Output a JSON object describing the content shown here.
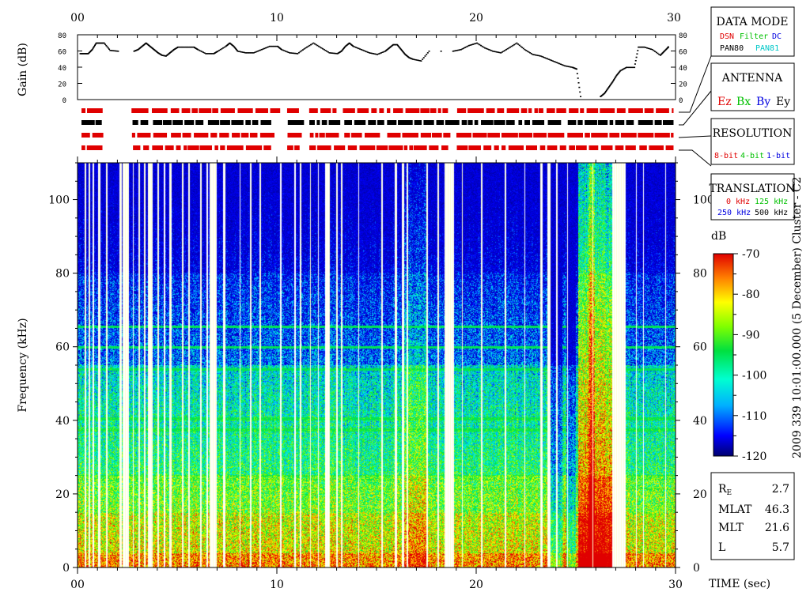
{
  "chart_data": {
    "type": "heatmap",
    "time_axis": {
      "label": "TIME (sec)",
      "range": [
        0,
        30
      ],
      "ticks": [
        "00",
        "10",
        "20",
        "30"
      ]
    },
    "gain_panel": {
      "ylabel": "Gain (dB)",
      "yrange": [
        0,
        80
      ],
      "ticks": [
        0,
        20,
        40,
        60,
        80
      ],
      "samples": [
        [
          0.1,
          57
        ],
        [
          0.3,
          57
        ],
        [
          0.5,
          57
        ],
        [
          0.7,
          62
        ],
        [
          0.9,
          70
        ],
        [
          1.1,
          70
        ],
        [
          1.3,
          70
        ],
        [
          1.6,
          61
        ],
        [
          2.0,
          60
        ],
        [
          2.8,
          60
        ],
        [
          3.0,
          62
        ],
        [
          3.2,
          66
        ],
        [
          3.4,
          70
        ],
        [
          3.6,
          66
        ],
        [
          3.8,
          62
        ],
        [
          4.0,
          58
        ],
        [
          4.2,
          55
        ],
        [
          4.4,
          54
        ],
        [
          4.6,
          58
        ],
        [
          4.8,
          62
        ],
        [
          5.0,
          65
        ],
        [
          5.4,
          65
        ],
        [
          5.8,
          65
        ],
        [
          6.0,
          62
        ],
        [
          6.4,
          57
        ],
        [
          6.8,
          57
        ],
        [
          7.0,
          60
        ],
        [
          7.4,
          66
        ],
        [
          7.6,
          70
        ],
        [
          7.8,
          66
        ],
        [
          8.0,
          60
        ],
        [
          8.4,
          58
        ],
        [
          8.8,
          58
        ],
        [
          9.2,
          62
        ],
        [
          9.6,
          66
        ],
        [
          10.0,
          66
        ],
        [
          10.2,
          62
        ],
        [
          10.6,
          58
        ],
        [
          11.0,
          57
        ],
        [
          11.4,
          64
        ],
        [
          11.8,
          70
        ],
        [
          12.2,
          64
        ],
        [
          12.6,
          58
        ],
        [
          13.0,
          57
        ],
        [
          13.2,
          60
        ],
        [
          13.4,
          66
        ],
        [
          13.6,
          70
        ],
        [
          13.8,
          66
        ],
        [
          14.2,
          62
        ],
        [
          14.6,
          58
        ],
        [
          15.0,
          56
        ],
        [
          15.4,
          60
        ],
        [
          15.6,
          64
        ],
        [
          15.8,
          68
        ],
        [
          16.0,
          68
        ],
        [
          16.2,
          62
        ],
        [
          16.4,
          56
        ],
        [
          16.6,
          52
        ],
        [
          16.8,
          50
        ],
        [
          17.2,
          48
        ],
        [
          17.6,
          60
        ],
        [
          18.2,
          60
        ],
        [
          18.8,
          60
        ],
        [
          19.2,
          62
        ],
        [
          19.6,
          67
        ],
        [
          20.0,
          70
        ],
        [
          20.4,
          64
        ],
        [
          20.8,
          60
        ],
        [
          21.2,
          58
        ],
        [
          21.6,
          64
        ],
        [
          22.0,
          70
        ],
        [
          22.4,
          62
        ],
        [
          22.8,
          56
        ],
        [
          23.2,
          54
        ],
        [
          23.6,
          50
        ],
        [
          24.0,
          46
        ],
        [
          24.4,
          42
        ],
        [
          24.8,
          40
        ],
        [
          25.0,
          38
        ],
        [
          25.2,
          4
        ],
        [
          26.2,
          4
        ],
        [
          26.4,
          8
        ],
        [
          26.6,
          15
        ],
        [
          26.8,
          22
        ],
        [
          27.0,
          30
        ],
        [
          27.2,
          36
        ],
        [
          27.5,
          40
        ],
        [
          27.9,
          40
        ],
        [
          28.1,
          65
        ],
        [
          28.4,
          65
        ],
        [
          28.8,
          62
        ],
        [
          29.2,
          55
        ],
        [
          29.4,
          60
        ],
        [
          29.6,
          65
        ]
      ]
    },
    "frequency_axis": {
      "label": "Frequency (kHz)",
      "range": [
        0,
        110
      ],
      "ticks": [
        0,
        20,
        40,
        60,
        80,
        100
      ]
    },
    "colorbar": {
      "unit": "dB",
      "range": [
        -120,
        -70
      ],
      "ticks": [
        -70,
        -80,
        -90,
        -100,
        -110,
        -120
      ]
    },
    "side_label": "2009 339 10:01:00.000 (5 December)    Cluster - C2",
    "dropouts": [
      [
        0.35,
        0.42
      ],
      [
        0.55,
        0.6
      ],
      [
        0.75,
        0.8
      ],
      [
        1.0,
        1.12
      ],
      [
        1.42,
        1.5
      ],
      [
        2.1,
        2.2
      ],
      [
        2.25,
        2.55
      ],
      [
        2.75,
        2.8
      ],
      [
        3.05,
        3.1
      ],
      [
        3.3,
        3.4
      ],
      [
        3.5,
        3.75
      ],
      [
        4.0,
        4.05
      ],
      [
        4.3,
        4.38
      ],
      [
        4.6,
        4.7
      ],
      [
        5.2,
        5.3
      ],
      [
        5.55,
        5.6
      ],
      [
        6.15,
        6.2
      ],
      [
        6.45,
        6.52
      ],
      [
        6.6,
        6.95
      ],
      [
        7.3,
        7.4
      ],
      [
        8.1,
        8.15
      ],
      [
        8.65,
        8.7
      ],
      [
        9.1,
        9.18
      ],
      [
        10.15,
        10.22
      ],
      [
        10.85,
        10.95
      ],
      [
        11.15,
        11.2
      ],
      [
        11.65,
        11.7
      ],
      [
        12.05,
        12.1
      ],
      [
        12.4,
        12.65
      ],
      [
        12.95,
        13.02
      ],
      [
        13.2,
        13.28
      ],
      [
        14.05,
        14.12
      ],
      [
        15.2,
        15.3
      ],
      [
        15.9,
        16.0
      ],
      [
        16.25,
        16.35
      ],
      [
        16.5,
        16.55
      ],
      [
        17.5,
        17.55
      ],
      [
        18.05,
        18.1
      ],
      [
        18.4,
        18.85
      ],
      [
        19.25,
        19.3
      ],
      [
        20.2,
        20.3
      ],
      [
        21.4,
        21.5
      ],
      [
        22.4,
        22.45
      ],
      [
        23.2,
        23.3
      ],
      [
        23.55,
        23.7
      ],
      [
        24.0,
        24.05
      ],
      [
        24.55,
        24.6
      ],
      [
        25.8,
        25.85
      ],
      [
        26.8,
        27.5
      ],
      [
        28.0,
        28.05
      ],
      [
        28.35,
        28.4
      ],
      [
        29.45,
        29.5
      ]
    ],
    "harmonic_lines_kHz": [
      65.5,
      60,
      54,
      40.5,
      37.5,
      25,
      24,
      21.5
    ],
    "status_rows": [
      {
        "color": "#e00000",
        "gaps": [
          [
            0,
            0.2
          ],
          [
            1.2,
            2.7
          ],
          [
            3.5,
            3.7
          ],
          [
            4.5,
            4.6
          ],
          [
            6.2,
            6.5
          ],
          [
            9.8,
            10.5
          ],
          [
            11.2,
            11.6
          ],
          [
            13.1,
            13.3
          ],
          [
            15.2,
            15.5
          ],
          [
            18.6,
            19.0
          ],
          [
            21.9,
            22.1
          ],
          [
            23.3,
            23.5
          ],
          [
            24.3,
            24.5
          ],
          [
            27.8,
            28.1
          ]
        ]
      },
      {
        "color": "#000000",
        "gaps": [
          [
            0,
            0.2
          ],
          [
            1.2,
            2.7
          ],
          [
            3.5,
            3.7
          ],
          [
            4.5,
            4.6
          ],
          [
            6.2,
            6.5
          ],
          [
            9.8,
            10.5
          ],
          [
            11.2,
            11.6
          ],
          [
            13.1,
            13.3
          ],
          [
            15.2,
            15.5
          ],
          [
            18.6,
            19.0
          ],
          [
            21.9,
            22.1
          ],
          [
            23.3,
            23.5
          ],
          [
            24.3,
            24.5
          ],
          [
            27.8,
            28.1
          ]
        ]
      },
      {
        "color": "#e00000",
        "gaps": [
          [
            0,
            0.2
          ],
          [
            1.2,
            2.7
          ],
          [
            3.5,
            3.7
          ],
          [
            4.5,
            4.6
          ],
          [
            6.2,
            6.5
          ],
          [
            9.8,
            10.5
          ],
          [
            11.2,
            11.6
          ],
          [
            13.1,
            13.3
          ],
          [
            15.2,
            15.5
          ],
          [
            18.6,
            19.0
          ],
          [
            21.9,
            22.1
          ],
          [
            23.3,
            23.5
          ],
          [
            24.3,
            24.5
          ],
          [
            27.8,
            28.1
          ]
        ]
      },
      {
        "color": "#e00000",
        "gaps": [
          [
            0,
            0.2
          ],
          [
            1.2,
            2.7
          ],
          [
            3.5,
            3.7
          ],
          [
            4.5,
            4.6
          ],
          [
            6.2,
            6.5
          ],
          [
            9.8,
            10.5
          ],
          [
            11.2,
            11.6
          ],
          [
            13.1,
            13.3
          ],
          [
            15.2,
            15.5
          ],
          [
            18.6,
            19.0
          ],
          [
            21.9,
            22.1
          ],
          [
            23.3,
            23.5
          ],
          [
            24.3,
            24.5
          ],
          [
            27.8,
            28.1
          ]
        ]
      }
    ]
  },
  "legend_boxes": {
    "data_mode": {
      "title": "DATA MODE",
      "items": [
        {
          "text": "DSN",
          "color": "#e00000"
        },
        {
          "text": "Filter",
          "color": "#00c000"
        },
        {
          "text": "DC",
          "color": "#0000e0"
        },
        {
          "text": "PAN80",
          "color": "#000000"
        },
        {
          "text": "PAN81",
          "color": "#00c8c8"
        }
      ]
    },
    "antenna": {
      "title": "ANTENNA",
      "items": [
        {
          "text": "Ez",
          "color": "#e00000"
        },
        {
          "text": "Bx",
          "color": "#00c000"
        },
        {
          "text": "By",
          "color": "#0000e0"
        },
        {
          "text": "Ey",
          "color": "#000000"
        }
      ]
    },
    "resolution": {
      "title": "RESOLUTION",
      "items": [
        {
          "text": "8-bit",
          "color": "#e00000"
        },
        {
          "text": "4-bit",
          "color": "#00c000"
        },
        {
          "text": "1-bit",
          "color": "#0000e0"
        }
      ]
    },
    "translation": {
      "title": "TRANSLATION",
      "items": [
        {
          "text": "0 kHz",
          "color": "#e00000"
        },
        {
          "text": "125 kHz",
          "color": "#00c000"
        },
        {
          "text": "250 kHz",
          "color": "#0000e0"
        },
        {
          "text": "500 kHz",
          "color": "#000000"
        }
      ]
    }
  },
  "ephemeris": [
    {
      "label": "RE",
      "value": "2.7"
    },
    {
      "label": "MLAT",
      "value": "46.3"
    },
    {
      "label": "MLT",
      "value": "21.6"
    },
    {
      "label": "L",
      "value": "5.7"
    }
  ]
}
